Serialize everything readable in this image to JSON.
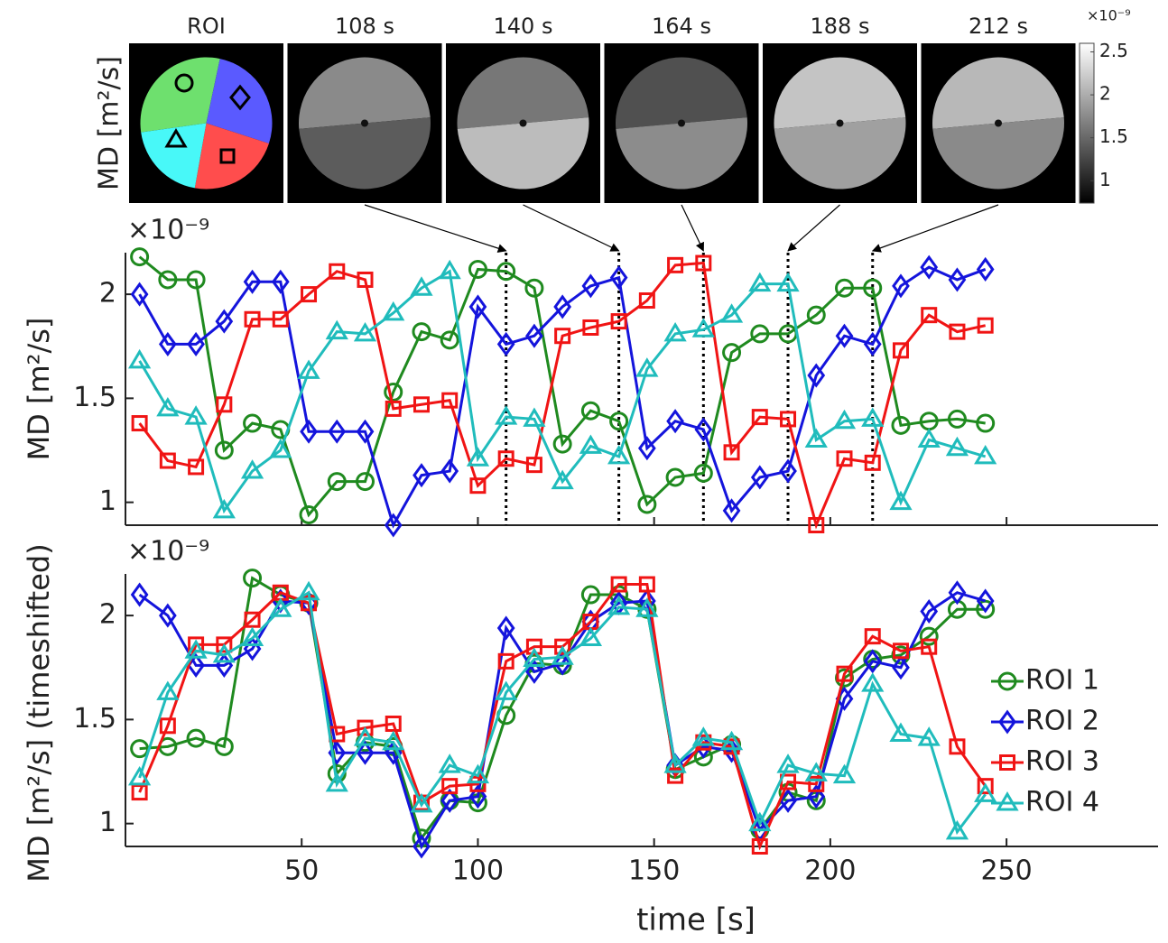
{
  "image_panel": {
    "ylabel": "MD [m²/s]",
    "titles": [
      "ROI",
      "108 s",
      "140 s",
      "164 s",
      "188 s",
      "212 s"
    ],
    "colorbar": {
      "multiplier": "×10⁻⁹",
      "clim": [
        0.74,
        2.6
      ],
      "ticks": [
        1,
        1.5,
        2,
        2.5
      ]
    }
  },
  "chart_data": [
    {
      "type": "line",
      "ylabel": "MD [m²/s]",
      "multiplier": "×10⁻⁹",
      "x": [
        4,
        12,
        20,
        28,
        36,
        44,
        52,
        60,
        68,
        76,
        84,
        92,
        100,
        108,
        116,
        124,
        132,
        140,
        148,
        156,
        164,
        172,
        180,
        188,
        196,
        204,
        212,
        220,
        228,
        236,
        244
      ],
      "xlim": [
        0,
        293
      ],
      "ylim": [
        0.89,
        2.2
      ],
      "xticks": [
        50,
        100,
        150,
        200,
        250
      ],
      "yticks": [
        1,
        1.5,
        2
      ],
      "show_xtick_labels": false,
      "marked_times": [
        108,
        140,
        164,
        188,
        212
      ],
      "series": [
        {
          "name": "ROI 1",
          "color": "#1f8a1f",
          "marker": "o",
          "values": [
            2.18,
            2.07,
            2.07,
            1.25,
            1.38,
            1.35,
            0.94,
            1.1,
            1.1,
            1.53,
            1.82,
            1.78,
            2.12,
            2.11,
            2.03,
            1.28,
            1.44,
            1.39,
            0.99,
            1.12,
            1.14,
            1.72,
            1.81,
            1.81,
            1.9,
            2.03,
            2.03,
            1.37,
            1.39,
            1.4,
            1.38
          ]
        },
        {
          "name": "ROI 2",
          "color": "#1414dc",
          "marker": "d",
          "values": [
            2.0,
            1.76,
            1.76,
            1.87,
            2.06,
            2.06,
            1.34,
            1.34,
            1.34,
            0.89,
            1.13,
            1.15,
            1.94,
            1.76,
            1.8,
            1.94,
            2.04,
            2.08,
            1.26,
            1.39,
            1.35,
            0.96,
            1.12,
            1.15,
            1.61,
            1.8,
            1.76,
            2.04,
            2.13,
            2.07,
            2.12
          ]
        },
        {
          "name": "ROI 3",
          "color": "#f01414",
          "marker": "s",
          "values": [
            1.38,
            1.2,
            1.17,
            1.47,
            1.88,
            1.88,
            2.0,
            2.11,
            2.07,
            1.45,
            1.47,
            1.49,
            1.08,
            1.21,
            1.18,
            1.8,
            1.84,
            1.87,
            1.97,
            2.14,
            2.15,
            1.24,
            1.41,
            1.4,
            0.89,
            1.21,
            1.19,
            1.73,
            1.9,
            1.82,
            1.85
          ]
        },
        {
          "name": "ROI 4",
          "color": "#20bcbc",
          "marker": "^",
          "values": [
            1.68,
            1.45,
            1.41,
            0.96,
            1.15,
            1.25,
            1.63,
            1.82,
            1.81,
            1.91,
            2.03,
            2.11,
            1.21,
            1.41,
            1.4,
            1.1,
            1.27,
            1.22,
            1.64,
            1.81,
            1.83,
            1.9,
            2.05,
            2.05,
            1.3,
            1.39,
            1.4,
            1.0,
            1.3,
            1.26,
            1.22
          ]
        }
      ]
    },
    {
      "type": "line",
      "ylabel": "MD [m²/s] (timeshifted)",
      "multiplier": "×10⁻⁹",
      "xlabel": "time [s]",
      "x": [
        4,
        12,
        20,
        28,
        36,
        44,
        52,
        60,
        68,
        76,
        84,
        92,
        100,
        108,
        116,
        124,
        132,
        140,
        148,
        156,
        164,
        172,
        180,
        188,
        196,
        204,
        212,
        220,
        228,
        236,
        244
      ],
      "xlim": [
        0,
        293
      ],
      "ylim": [
        0.89,
        2.2
      ],
      "xticks": [
        50,
        100,
        150,
        200,
        250
      ],
      "yticks": [
        1,
        1.5,
        2
      ],
      "legend": "lower right",
      "series": [
        {
          "name": "ROI 1",
          "color": "#1f8a1f",
          "marker": "o",
          "values": [
            1.36,
            1.37,
            1.41,
            1.37,
            2.18,
            2.1,
            2.06,
            1.24,
            1.39,
            1.37,
            0.93,
            1.11,
            1.1,
            1.52,
            1.77,
            1.76,
            2.1,
            2.1,
            2.03,
            1.26,
            1.32,
            1.38,
            0.97,
            1.15,
            1.11,
            1.7,
            1.79,
            1.81,
            1.9,
            2.03,
            2.03
          ]
        },
        {
          "name": "ROI 2",
          "color": "#1414dc",
          "marker": "d",
          "values": [
            2.1,
            2.0,
            1.76,
            1.76,
            1.84,
            2.07,
            2.06,
            1.34,
            1.34,
            1.34,
            0.89,
            1.11,
            1.13,
            1.94,
            1.73,
            1.77,
            1.97,
            2.06,
            2.07,
            1.28,
            1.37,
            1.35,
            0.97,
            1.11,
            1.13,
            1.6,
            1.78,
            1.75,
            2.02,
            2.11,
            2.07
          ]
        },
        {
          "name": "ROI 3",
          "color": "#f01414",
          "marker": "s",
          "values": [
            1.15,
            1.47,
            1.86,
            1.86,
            1.98,
            2.11,
            2.06,
            1.43,
            1.46,
            1.48,
            1.1,
            1.18,
            1.19,
            1.78,
            1.85,
            1.85,
            1.97,
            2.15,
            2.15,
            1.23,
            1.39,
            1.37,
            0.89,
            1.2,
            1.19,
            1.72,
            1.9,
            1.83,
            1.85,
            1.37,
            1.18
          ]
        },
        {
          "name": "ROI 4",
          "color": "#20bcbc",
          "marker": "^",
          "values": [
            1.22,
            1.63,
            1.83,
            1.81,
            1.89,
            2.03,
            2.11,
            1.19,
            1.41,
            1.39,
            1.09,
            1.28,
            1.23,
            1.63,
            1.79,
            1.8,
            1.89,
            2.04,
            2.03,
            1.28,
            1.41,
            1.39,
            1.0,
            1.28,
            1.24,
            1.23,
            1.67,
            1.43,
            1.41,
            0.96,
            1.14
          ]
        }
      ]
    }
  ]
}
